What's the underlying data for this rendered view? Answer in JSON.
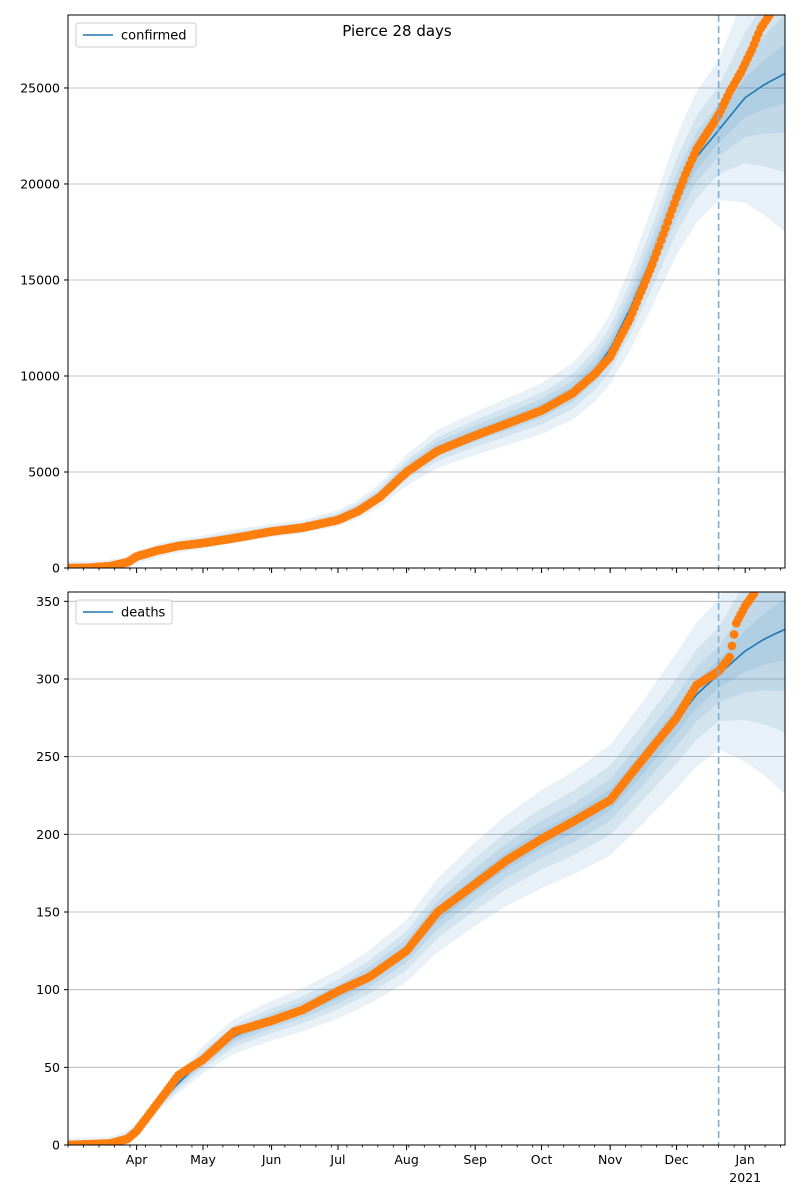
{
  "title": "Pierce 28 days",
  "colors": {
    "model_line": "#1f77b4",
    "band": "#1f77b4",
    "observed": "#ff7f0e",
    "grid": "#b0b0b0",
    "forecast_line": "#7aaed4"
  },
  "x_axis": {
    "start": "2020-03-01",
    "end": "2021-01-19",
    "month_labels": [
      {
        "date": "2020-04-01",
        "label": "Apr"
      },
      {
        "date": "2020-05-01",
        "label": "May"
      },
      {
        "date": "2020-06-01",
        "label": "Jun"
      },
      {
        "date": "2020-07-01",
        "label": "Jul"
      },
      {
        "date": "2020-08-01",
        "label": "Aug"
      },
      {
        "date": "2020-09-01",
        "label": "Sep"
      },
      {
        "date": "2020-10-01",
        "label": "Oct"
      },
      {
        "date": "2020-11-01",
        "label": "Nov"
      },
      {
        "date": "2020-12-01",
        "label": "Dec"
      },
      {
        "date": "2021-01-01",
        "label": "Jan"
      }
    ],
    "year_label": {
      "date": "2021-01-01",
      "label": "2021"
    },
    "forecast_start": "2020-12-20"
  },
  "chart_data": [
    {
      "type": "line",
      "legend": "confirmed",
      "legend_position": "top-left",
      "grid": true,
      "ylim": [
        0,
        28800
      ],
      "yticks": [
        0,
        5000,
        10000,
        15000,
        20000,
        25000
      ],
      "model": [
        [
          "2020-03-01",
          0
        ],
        [
          "2020-03-15",
          40
        ],
        [
          "2020-03-25",
          150
        ],
        [
          "2020-04-01",
          550
        ],
        [
          "2020-04-15",
          1050
        ],
        [
          "2020-05-01",
          1350
        ],
        [
          "2020-05-15",
          1650
        ],
        [
          "2020-06-01",
          1950
        ],
        [
          "2020-06-15",
          2150
        ],
        [
          "2020-07-01",
          2600
        ],
        [
          "2020-07-10",
          3050
        ],
        [
          "2020-07-20",
          3800
        ],
        [
          "2020-08-01",
          5100
        ],
        [
          "2020-08-15",
          6200
        ],
        [
          "2020-09-01",
          7000
        ],
        [
          "2020-09-15",
          7600
        ],
        [
          "2020-10-01",
          8300
        ],
        [
          "2020-10-15",
          9200
        ],
        [
          "2020-10-25",
          10300
        ],
        [
          "2020-11-01",
          11400
        ],
        [
          "2020-11-10",
          13500
        ],
        [
          "2020-11-20",
          16200
        ],
        [
          "2020-12-01",
          19400
        ],
        [
          "2020-12-10",
          21400
        ],
        [
          "2020-12-20",
          22800
        ],
        [
          "2021-01-01",
          24500
        ],
        [
          "2021-01-10",
          25200
        ],
        [
          "2021-01-19",
          25750
        ]
      ],
      "observed": [
        [
          "2020-03-01",
          0
        ],
        [
          "2020-03-10",
          10
        ],
        [
          "2020-03-20",
          100
        ],
        [
          "2020-03-28",
          300
        ],
        [
          "2020-04-01",
          600
        ],
        [
          "2020-04-10",
          900
        ],
        [
          "2020-04-20",
          1150
        ],
        [
          "2020-05-01",
          1300
        ],
        [
          "2020-05-15",
          1550
        ],
        [
          "2020-06-01",
          1900
        ],
        [
          "2020-06-15",
          2100
        ],
        [
          "2020-07-01",
          2500
        ],
        [
          "2020-07-10",
          2950
        ],
        [
          "2020-07-20",
          3700
        ],
        [
          "2020-08-01",
          5000
        ],
        [
          "2020-08-15",
          6100
        ],
        [
          "2020-09-01",
          6900
        ],
        [
          "2020-09-15",
          7500
        ],
        [
          "2020-10-01",
          8200
        ],
        [
          "2020-10-15",
          9100
        ],
        [
          "2020-10-25",
          10100
        ],
        [
          "2020-11-01",
          11000
        ],
        [
          "2020-11-10",
          13000
        ],
        [
          "2020-11-20",
          15800
        ],
        [
          "2020-12-01",
          19300
        ],
        [
          "2020-12-05",
          20500
        ],
        [
          "2020-12-10",
          21800
        ],
        [
          "2020-12-15",
          22700
        ],
        [
          "2020-12-20",
          23600
        ],
        [
          "2020-12-25",
          24800
        ],
        [
          "2020-12-30",
          25800
        ],
        [
          "2021-01-04",
          27000
        ],
        [
          "2021-01-08",
          28100
        ],
        [
          "2021-01-12",
          28800
        ]
      ],
      "band_widths": [
        0.03,
        0.06,
        0.1,
        0.16
      ]
    },
    {
      "type": "line",
      "legend": "deaths",
      "legend_position": "top-left",
      "grid": true,
      "ylim": [
        0,
        356
      ],
      "yticks": [
        0,
        50,
        100,
        150,
        200,
        250,
        300,
        350
      ],
      "model": [
        [
          "2020-03-01",
          0
        ],
        [
          "2020-03-20",
          1
        ],
        [
          "2020-03-28",
          5
        ],
        [
          "2020-04-01",
          10
        ],
        [
          "2020-04-10",
          25
        ],
        [
          "2020-04-20",
          40
        ],
        [
          "2020-05-01",
          55
        ],
        [
          "2020-05-15",
          70
        ],
        [
          "2020-06-01",
          80
        ],
        [
          "2020-06-15",
          87
        ],
        [
          "2020-07-01",
          97
        ],
        [
          "2020-07-15",
          108
        ],
        [
          "2020-08-01",
          125
        ],
        [
          "2020-08-15",
          148
        ],
        [
          "2020-09-01",
          168
        ],
        [
          "2020-09-15",
          183
        ],
        [
          "2020-10-01",
          197
        ],
        [
          "2020-10-15",
          207
        ],
        [
          "2020-11-01",
          222
        ],
        [
          "2020-11-15",
          245
        ],
        [
          "2020-12-01",
          273
        ],
        [
          "2020-12-10",
          290
        ],
        [
          "2020-12-20",
          303
        ],
        [
          "2021-01-01",
          318
        ],
        [
          "2021-01-10",
          326
        ],
        [
          "2021-01-19",
          332
        ]
      ],
      "observed": [
        [
          "2020-03-01",
          0
        ],
        [
          "2020-03-20",
          1
        ],
        [
          "2020-03-28",
          4
        ],
        [
          "2020-04-01",
          9
        ],
        [
          "2020-04-10",
          26
        ],
        [
          "2020-04-20",
          45
        ],
        [
          "2020-05-01",
          55
        ],
        [
          "2020-05-15",
          73
        ],
        [
          "2020-06-01",
          80
        ],
        [
          "2020-06-15",
          87
        ],
        [
          "2020-07-01",
          99
        ],
        [
          "2020-07-15",
          108
        ],
        [
          "2020-08-01",
          125
        ],
        [
          "2020-08-15",
          150
        ],
        [
          "2020-09-01",
          168
        ],
        [
          "2020-09-15",
          183
        ],
        [
          "2020-10-01",
          197
        ],
        [
          "2020-10-15",
          208
        ],
        [
          "2020-11-01",
          222
        ],
        [
          "2020-11-15",
          247
        ],
        [
          "2020-12-01",
          275
        ],
        [
          "2020-12-10",
          296
        ],
        [
          "2020-12-20",
          305
        ],
        [
          "2020-12-25",
          314
        ],
        [
          "2020-12-28",
          336
        ],
        [
          "2021-01-01",
          347
        ],
        [
          "2021-01-05",
          355
        ]
      ],
      "band_widths": [
        0.03,
        0.06,
        0.1,
        0.16
      ]
    }
  ]
}
